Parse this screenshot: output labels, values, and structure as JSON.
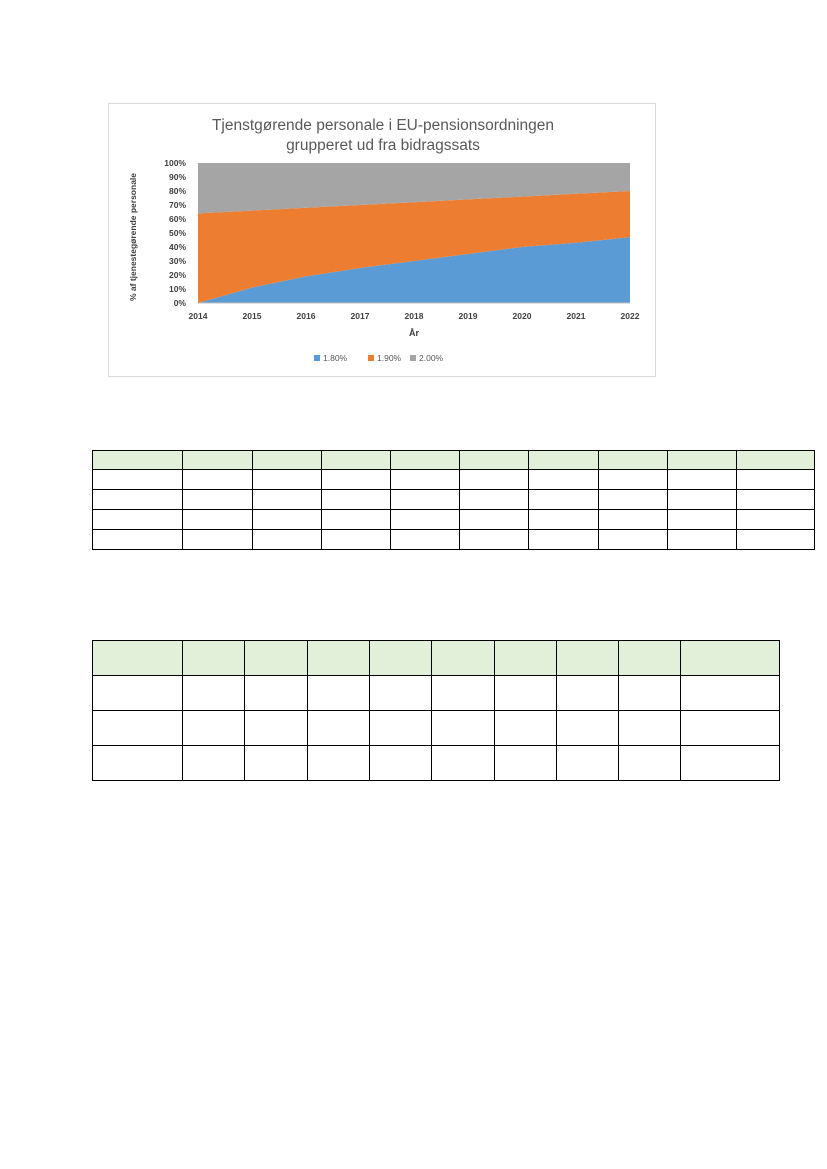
{
  "chart_data": {
    "type": "area",
    "stacked": true,
    "title": "Tjenstgørende personale i EU-pensionsordningen grupperet ud fra bidragssats",
    "title_lines": [
      "Tjenstgørende personale i EU-pensionsordningen",
      "grupperet ud fra bidragssats"
    ],
    "xlabel": "År",
    "ylabel": "% af tjenestegørende personale",
    "x": [
      2014,
      2015,
      2016,
      2017,
      2018,
      2019,
      2020,
      2021,
      2022
    ],
    "yticks": [
      "0%",
      "10%",
      "20%",
      "30%",
      "40%",
      "50%",
      "60%",
      "70%",
      "80%",
      "90%",
      "100%"
    ],
    "ylim": [
      0,
      100
    ],
    "legend_position": "bottom",
    "grid": false,
    "series": [
      {
        "name": "1.80%",
        "color": "#5b9bd5",
        "values": [
          0,
          11,
          19,
          25,
          30,
          35,
          40,
          43,
          47
        ]
      },
      {
        "name": "1.90%",
        "color": "#ed7d31",
        "values": [
          64,
          55,
          49,
          45,
          42,
          39,
          36,
          35,
          33
        ]
      },
      {
        "name": "2.00%",
        "color": "#a5a5a5",
        "values": [
          36,
          34,
          32,
          30,
          28,
          26,
          24,
          22,
          20
        ]
      }
    ]
  },
  "tables": {
    "table_1": {
      "header_color": "#e2efd9",
      "columns": [
        "",
        "",
        "",
        "",
        "",
        "",
        "",
        "",
        "",
        ""
      ],
      "rows": [
        [
          "",
          "",
          "",
          "",
          "",
          "",
          "",
          "",
          "",
          ""
        ],
        [
          "",
          "",
          "",
          "",
          "",
          "",
          "",
          "",
          "",
          ""
        ],
        [
          "",
          "",
          "",
          "",
          "",
          "",
          "",
          "",
          "",
          ""
        ],
        [
          "",
          "",
          "",
          "",
          "",
          "",
          "",
          "",
          "",
          ""
        ]
      ]
    },
    "table_2": {
      "header_color": "#e2efd9",
      "columns": [
        "",
        "",
        "",
        "",
        "",
        "",
        "",
        "",
        "",
        ""
      ],
      "rows": [
        [
          "",
          "",
          "",
          "",
          "",
          "",
          "",
          "",
          "",
          ""
        ],
        [
          "",
          "",
          "",
          "",
          "",
          "",
          "",
          "",
          "",
          ""
        ],
        [
          "",
          "",
          "",
          "",
          "",
          "",
          "",
          "",
          "",
          ""
        ]
      ]
    }
  }
}
